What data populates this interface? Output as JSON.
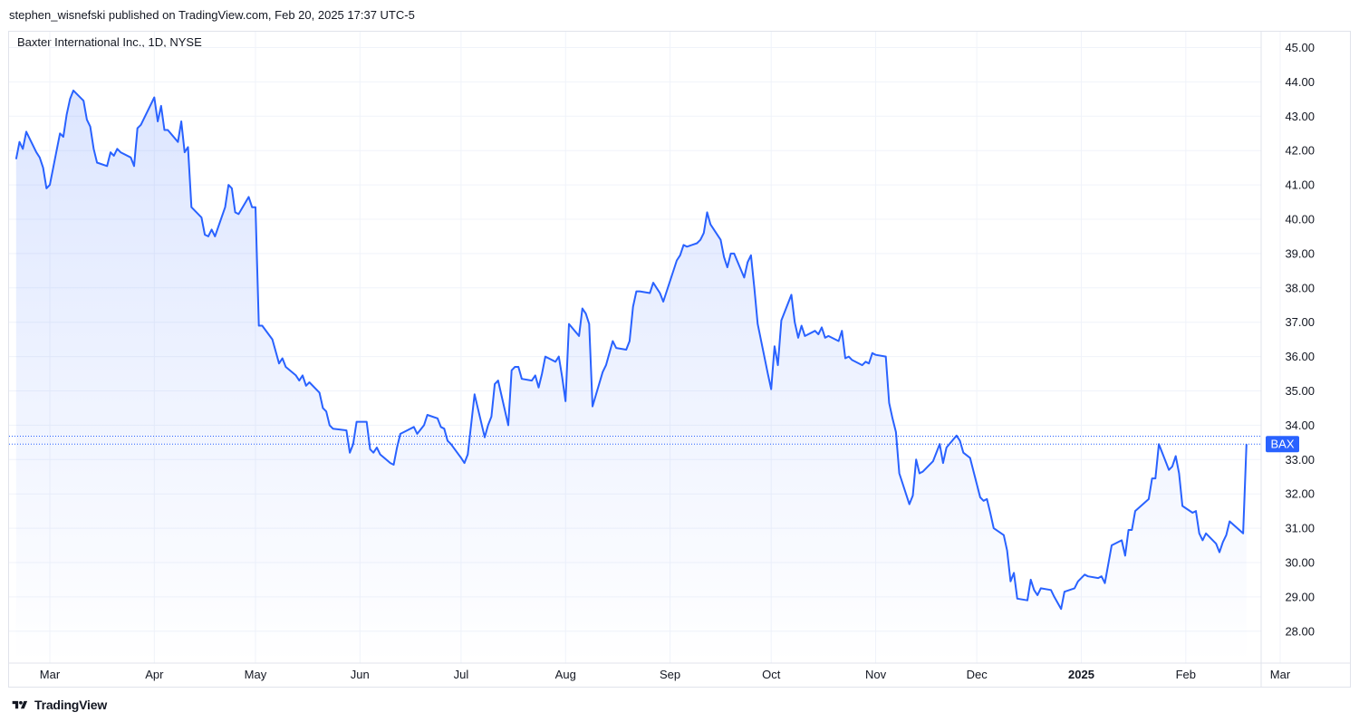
{
  "header": {
    "published_by": "stephen_wisnefski published on TradingView.com, Feb 20, 2025 17:37 UTC-5"
  },
  "footer": {
    "brand": "TradingView"
  },
  "colors": {
    "line": "#2962ff",
    "grid": "#f0f3fa",
    "badge": "#2962ff"
  },
  "chart_data": {
    "type": "area",
    "title": "Baxter International Inc., 1D, NYSE",
    "symbol_badge": "BAX",
    "y_axis": {
      "position": "right",
      "ylim": [
        27.4,
        45.5
      ],
      "ticks": [
        "45.00",
        "44.00",
        "43.00",
        "42.00",
        "41.00",
        "40.00",
        "39.00",
        "38.00",
        "37.00",
        "36.00",
        "35.00",
        "34.00",
        "33.00",
        "32.00",
        "31.00",
        "30.00",
        "29.00",
        "28.00"
      ]
    },
    "x_axis": {
      "ticks": [
        {
          "label": "Mar",
          "date": "2024-03-01"
        },
        {
          "label": "Apr",
          "date": "2024-04-01"
        },
        {
          "label": "May",
          "date": "2024-05-01"
        },
        {
          "label": "Jun",
          "date": "2024-06-01"
        },
        {
          "label": "Jul",
          "date": "2024-07-01"
        },
        {
          "label": "Aug",
          "date": "2024-08-01"
        },
        {
          "label": "Sep",
          "date": "2024-09-01"
        },
        {
          "label": "Oct",
          "date": "2024-10-01"
        },
        {
          "label": "Nov",
          "date": "2024-11-01"
        },
        {
          "label": "Dec",
          "date": "2024-12-01"
        },
        {
          "label": "2025",
          "date": "2025-01-01",
          "bold": true
        },
        {
          "label": "Feb",
          "date": "2025-02-01"
        },
        {
          "label": "Mar",
          "date": "2025-03-01"
        }
      ]
    },
    "reference_lines": [
      33.68,
      33.45
    ],
    "series": [
      {
        "points": [
          [
            "2024-02-20",
            41.75
          ],
          [
            "2024-02-21",
            42.25
          ],
          [
            "2024-02-22",
            42.05
          ],
          [
            "2024-02-23",
            42.55
          ],
          [
            "2024-02-26",
            41.95
          ],
          [
            "2024-02-27",
            41.8
          ],
          [
            "2024-02-28",
            41.5
          ],
          [
            "2024-02-29",
            40.9
          ],
          [
            "2024-03-01",
            41.0
          ],
          [
            "2024-03-04",
            42.5
          ],
          [
            "2024-03-05",
            42.4
          ],
          [
            "2024-03-06",
            43.05
          ],
          [
            "2024-03-07",
            43.5
          ],
          [
            "2024-03-08",
            43.75
          ],
          [
            "2024-03-11",
            43.45
          ],
          [
            "2024-03-12",
            42.9
          ],
          [
            "2024-03-13",
            42.7
          ],
          [
            "2024-03-14",
            42.05
          ],
          [
            "2024-03-15",
            41.65
          ],
          [
            "2024-03-18",
            41.55
          ],
          [
            "2024-03-19",
            41.95
          ],
          [
            "2024-03-20",
            41.85
          ],
          [
            "2024-03-21",
            42.05
          ],
          [
            "2024-03-22",
            41.95
          ],
          [
            "2024-03-25",
            41.8
          ],
          [
            "2024-03-26",
            41.55
          ],
          [
            "2024-03-27",
            42.65
          ],
          [
            "2024-03-28",
            42.75
          ],
          [
            "2024-04-01",
            43.55
          ],
          [
            "2024-04-02",
            42.85
          ],
          [
            "2024-04-03",
            43.3
          ],
          [
            "2024-04-04",
            42.6
          ],
          [
            "2024-04-05",
            42.6
          ],
          [
            "2024-04-08",
            42.25
          ],
          [
            "2024-04-09",
            42.85
          ],
          [
            "2024-04-10",
            41.95
          ],
          [
            "2024-04-11",
            42.1
          ],
          [
            "2024-04-12",
            40.35
          ],
          [
            "2024-04-15",
            40.05
          ],
          [
            "2024-04-16",
            39.55
          ],
          [
            "2024-04-17",
            39.5
          ],
          [
            "2024-04-18",
            39.7
          ],
          [
            "2024-04-19",
            39.5
          ],
          [
            "2024-04-22",
            40.35
          ],
          [
            "2024-04-23",
            41.0
          ],
          [
            "2024-04-24",
            40.9
          ],
          [
            "2024-04-25",
            40.2
          ],
          [
            "2024-04-26",
            40.15
          ],
          [
            "2024-04-29",
            40.65
          ],
          [
            "2024-04-30",
            40.35
          ],
          [
            "2024-05-01",
            40.35
          ],
          [
            "2024-05-02",
            36.9
          ],
          [
            "2024-05-03",
            36.9
          ],
          [
            "2024-05-06",
            36.5
          ],
          [
            "2024-05-07",
            36.15
          ],
          [
            "2024-05-08",
            35.8
          ],
          [
            "2024-05-09",
            35.95
          ],
          [
            "2024-05-10",
            35.7
          ],
          [
            "2024-05-13",
            35.45
          ],
          [
            "2024-05-14",
            35.3
          ],
          [
            "2024-05-15",
            35.45
          ],
          [
            "2024-05-16",
            35.15
          ],
          [
            "2024-05-17",
            35.25
          ],
          [
            "2024-05-20",
            34.95
          ],
          [
            "2024-05-21",
            34.5
          ],
          [
            "2024-05-22",
            34.4
          ],
          [
            "2024-05-23",
            34.0
          ],
          [
            "2024-05-24",
            33.9
          ],
          [
            "2024-05-28",
            33.85
          ],
          [
            "2024-05-29",
            33.2
          ],
          [
            "2024-05-30",
            33.45
          ],
          [
            "2024-05-31",
            34.1
          ],
          [
            "2024-06-03",
            34.1
          ],
          [
            "2024-06-04",
            33.3
          ],
          [
            "2024-06-05",
            33.2
          ],
          [
            "2024-06-06",
            33.35
          ],
          [
            "2024-06-07",
            33.15
          ],
          [
            "2024-06-10",
            32.9
          ],
          [
            "2024-06-11",
            32.85
          ],
          [
            "2024-06-12",
            33.35
          ],
          [
            "2024-06-13",
            33.75
          ],
          [
            "2024-06-14",
            33.8
          ],
          [
            "2024-06-17",
            33.95
          ],
          [
            "2024-06-18",
            33.75
          ],
          [
            "2024-06-20",
            34.0
          ],
          [
            "2024-06-21",
            34.3
          ],
          [
            "2024-06-24",
            34.2
          ],
          [
            "2024-06-25",
            33.95
          ],
          [
            "2024-06-26",
            33.9
          ],
          [
            "2024-06-27",
            33.55
          ],
          [
            "2024-06-28",
            33.45
          ],
          [
            "2024-07-01",
            33.05
          ],
          [
            "2024-07-02",
            32.9
          ],
          [
            "2024-07-03",
            33.15
          ],
          [
            "2024-07-05",
            34.9
          ],
          [
            "2024-07-08",
            33.65
          ],
          [
            "2024-07-09",
            34.0
          ],
          [
            "2024-07-10",
            34.25
          ],
          [
            "2024-07-11",
            35.2
          ],
          [
            "2024-07-12",
            35.3
          ],
          [
            "2024-07-15",
            34.0
          ],
          [
            "2024-07-16",
            35.6
          ],
          [
            "2024-07-17",
            35.7
          ],
          [
            "2024-07-18",
            35.7
          ],
          [
            "2024-07-19",
            35.35
          ],
          [
            "2024-07-22",
            35.3
          ],
          [
            "2024-07-23",
            35.45
          ],
          [
            "2024-07-24",
            35.1
          ],
          [
            "2024-07-25",
            35.5
          ],
          [
            "2024-07-26",
            36.0
          ],
          [
            "2024-07-29",
            35.85
          ],
          [
            "2024-07-30",
            36.0
          ],
          [
            "2024-07-31",
            35.4
          ],
          [
            "2024-08-01",
            34.7
          ],
          [
            "2024-08-02",
            36.95
          ],
          [
            "2024-08-05",
            36.6
          ],
          [
            "2024-08-06",
            37.4
          ],
          [
            "2024-08-07",
            37.25
          ],
          [
            "2024-08-08",
            36.95
          ],
          [
            "2024-08-09",
            34.55
          ],
          [
            "2024-08-12",
            35.55
          ],
          [
            "2024-08-13",
            35.75
          ],
          [
            "2024-08-14",
            36.1
          ],
          [
            "2024-08-15",
            36.45
          ],
          [
            "2024-08-16",
            36.25
          ],
          [
            "2024-08-19",
            36.2
          ],
          [
            "2024-08-20",
            36.45
          ],
          [
            "2024-08-21",
            37.45
          ],
          [
            "2024-08-22",
            37.9
          ],
          [
            "2024-08-23",
            37.9
          ],
          [
            "2024-08-26",
            37.85
          ],
          [
            "2024-08-27",
            38.15
          ],
          [
            "2024-08-28",
            38.0
          ],
          [
            "2024-08-29",
            37.85
          ],
          [
            "2024-08-30",
            37.6
          ],
          [
            "2024-09-03",
            38.8
          ],
          [
            "2024-09-04",
            38.95
          ],
          [
            "2024-09-05",
            39.25
          ],
          [
            "2024-09-06",
            39.2
          ],
          [
            "2024-09-09",
            39.3
          ],
          [
            "2024-09-10",
            39.4
          ],
          [
            "2024-09-11",
            39.6
          ],
          [
            "2024-09-12",
            40.2
          ],
          [
            "2024-09-13",
            39.85
          ],
          [
            "2024-09-16",
            39.4
          ],
          [
            "2024-09-17",
            38.9
          ],
          [
            "2024-09-18",
            38.6
          ],
          [
            "2024-09-19",
            39.0
          ],
          [
            "2024-09-20",
            39.0
          ],
          [
            "2024-09-23",
            38.3
          ],
          [
            "2024-09-24",
            38.75
          ],
          [
            "2024-09-25",
            38.95
          ],
          [
            "2024-09-26",
            38.0
          ],
          [
            "2024-09-27",
            36.95
          ],
          [
            "2024-09-30",
            35.5
          ],
          [
            "2024-10-01",
            35.05
          ],
          [
            "2024-10-02",
            36.3
          ],
          [
            "2024-10-03",
            35.75
          ],
          [
            "2024-10-04",
            37.05
          ],
          [
            "2024-10-07",
            37.8
          ],
          [
            "2024-10-08",
            37.0
          ],
          [
            "2024-10-09",
            36.55
          ],
          [
            "2024-10-10",
            36.9
          ],
          [
            "2024-10-11",
            36.6
          ],
          [
            "2024-10-14",
            36.75
          ],
          [
            "2024-10-15",
            36.65
          ],
          [
            "2024-10-16",
            36.85
          ],
          [
            "2024-10-17",
            36.55
          ],
          [
            "2024-10-18",
            36.6
          ],
          [
            "2024-10-21",
            36.45
          ],
          [
            "2024-10-22",
            36.75
          ],
          [
            "2024-10-23",
            35.95
          ],
          [
            "2024-10-24",
            36.0
          ],
          [
            "2024-10-25",
            35.9
          ],
          [
            "2024-10-28",
            35.75
          ],
          [
            "2024-10-29",
            35.85
          ],
          [
            "2024-10-30",
            35.8
          ],
          [
            "2024-10-31",
            36.1
          ],
          [
            "2024-11-01",
            36.05
          ],
          [
            "2024-11-04",
            36.0
          ],
          [
            "2024-11-05",
            34.65
          ],
          [
            "2024-11-06",
            34.2
          ],
          [
            "2024-11-07",
            33.8
          ],
          [
            "2024-11-08",
            32.6
          ],
          [
            "2024-11-11",
            31.7
          ],
          [
            "2024-11-12",
            31.95
          ],
          [
            "2024-11-13",
            33.0
          ],
          [
            "2024-11-14",
            32.6
          ],
          [
            "2024-11-15",
            32.65
          ],
          [
            "2024-11-18",
            32.95
          ],
          [
            "2024-11-19",
            33.2
          ],
          [
            "2024-11-20",
            33.45
          ],
          [
            "2024-11-21",
            32.9
          ],
          [
            "2024-11-22",
            33.35
          ],
          [
            "2024-11-25",
            33.7
          ],
          [
            "2024-11-26",
            33.55
          ],
          [
            "2024-11-27",
            33.2
          ],
          [
            "2024-11-29",
            33.05
          ],
          [
            "2024-12-02",
            31.9
          ],
          [
            "2024-12-03",
            31.8
          ],
          [
            "2024-12-04",
            31.85
          ],
          [
            "2024-12-05",
            31.45
          ],
          [
            "2024-12-06",
            31.0
          ],
          [
            "2024-12-09",
            30.8
          ],
          [
            "2024-12-10",
            30.35
          ],
          [
            "2024-12-11",
            29.45
          ],
          [
            "2024-12-12",
            29.7
          ],
          [
            "2024-12-13",
            28.95
          ],
          [
            "2024-12-16",
            28.9
          ],
          [
            "2024-12-17",
            29.5
          ],
          [
            "2024-12-18",
            29.2
          ],
          [
            "2024-12-19",
            29.05
          ],
          [
            "2024-12-20",
            29.25
          ],
          [
            "2024-12-23",
            29.2
          ],
          [
            "2024-12-24",
            29.0
          ],
          [
            "2024-12-26",
            28.65
          ],
          [
            "2024-12-27",
            29.15
          ],
          [
            "2024-12-30",
            29.25
          ],
          [
            "2024-12-31",
            29.45
          ],
          [
            "2025-01-02",
            29.65
          ],
          [
            "2025-01-03",
            29.6
          ],
          [
            "2025-01-06",
            29.55
          ],
          [
            "2025-01-07",
            29.6
          ],
          [
            "2025-01-08",
            29.4
          ],
          [
            "2025-01-10",
            30.5
          ],
          [
            "2025-01-13",
            30.65
          ],
          [
            "2025-01-14",
            30.2
          ],
          [
            "2025-01-15",
            30.95
          ],
          [
            "2025-01-16",
            30.95
          ],
          [
            "2025-01-17",
            31.5
          ],
          [
            "2025-01-21",
            31.85
          ],
          [
            "2025-01-22",
            32.45
          ],
          [
            "2025-01-23",
            32.45
          ],
          [
            "2025-01-24",
            33.45
          ],
          [
            "2025-01-27",
            32.7
          ],
          [
            "2025-01-28",
            32.8
          ],
          [
            "2025-01-29",
            33.1
          ],
          [
            "2025-01-30",
            32.6
          ],
          [
            "2025-01-31",
            31.65
          ],
          [
            "2025-02-03",
            31.45
          ],
          [
            "2025-02-04",
            31.5
          ],
          [
            "2025-02-05",
            30.85
          ],
          [
            "2025-02-06",
            30.65
          ],
          [
            "2025-02-07",
            30.85
          ],
          [
            "2025-02-10",
            30.55
          ],
          [
            "2025-02-11",
            30.3
          ],
          [
            "2025-02-12",
            30.6
          ],
          [
            "2025-02-13",
            30.8
          ],
          [
            "2025-02-14",
            31.2
          ],
          [
            "2025-02-18",
            30.85
          ],
          [
            "2025-02-19",
            33.45
          ]
        ]
      }
    ]
  }
}
